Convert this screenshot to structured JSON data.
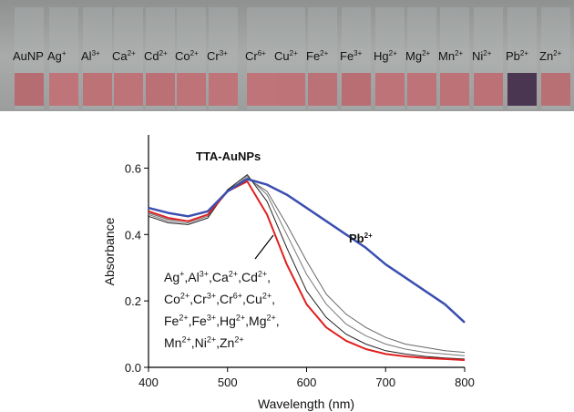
{
  "photo": {
    "labels": [
      [
        "AuNP"
      ],
      [
        "Ag",
        "+"
      ],
      [
        "Al",
        "3+"
      ],
      [
        "Ca",
        "2+"
      ],
      [
        "Cd",
        "2+"
      ],
      [
        "Co",
        "2+"
      ],
      [
        "Cr",
        "3+"
      ],
      [
        "Cr",
        "6+"
      ],
      [
        "Cu",
        "2+"
      ],
      [
        "Fe",
        "2+"
      ],
      [
        "Fe",
        "3+"
      ],
      [
        "Hg",
        "2+"
      ],
      [
        "Mg",
        "2+"
      ],
      [
        "Mn",
        "2+"
      ],
      [
        "Ni",
        "2+"
      ],
      [
        "Pb",
        "2+"
      ],
      [
        "Zn",
        "2+"
      ]
    ],
    "colors": [
      "#b56d72",
      "#bf7479",
      "#bd7276",
      "#be7378",
      "#bb7075",
      "#bd7378",
      "#be7479",
      "#be7479",
      "#bd7378",
      "#bb7277",
      "#b86e73",
      "#bd7378",
      "#bd7378",
      "#bc7277",
      "#bb7176",
      "#4b3652",
      "#b97075"
    ]
  },
  "chart_data": {
    "type": "line",
    "x_label": "Wavelength (nm)",
    "y_label": "Absorbance",
    "x": [
      400,
      425,
      450,
      475,
      500,
      525,
      550,
      575,
      600,
      625,
      650,
      675,
      700,
      725,
      750,
      775,
      800
    ],
    "series": [
      {
        "color": "#666666",
        "values": [
          0.465,
          0.445,
          0.44,
          0.46,
          0.535,
          0.57,
          0.53,
          0.43,
          0.32,
          0.22,
          0.16,
          0.12,
          0.09,
          0.07,
          0.06,
          0.05,
          0.045
        ]
      },
      {
        "color": "#777777",
        "values": [
          0.46,
          0.44,
          0.435,
          0.455,
          0.53,
          0.575,
          0.52,
          0.4,
          0.28,
          0.19,
          0.13,
          0.095,
          0.07,
          0.055,
          0.045,
          0.04,
          0.035
        ]
      },
      {
        "color": "#222222",
        "values": [
          0.455,
          0.435,
          0.43,
          0.45,
          0.535,
          0.58,
          0.5,
          0.36,
          0.23,
          0.15,
          0.1,
          0.07,
          0.05,
          0.04,
          0.033,
          0.028,
          0.025
        ]
      },
      {
        "color": "#e02020",
        "values": [
          0.47,
          0.45,
          0.44,
          0.46,
          0.53,
          0.56,
          0.46,
          0.31,
          0.19,
          0.12,
          0.08,
          0.055,
          0.04,
          0.033,
          0.028,
          0.025,
          0.022
        ]
      },
      {
        "color": "#3b4fb0",
        "values": [
          0.48,
          0.465,
          0.455,
          0.47,
          0.53,
          0.567,
          0.55,
          0.52,
          0.48,
          0.44,
          0.4,
          0.36,
          0.31,
          0.27,
          0.23,
          0.19,
          0.135
        ]
      }
    ],
    "xlim": [
      400,
      800
    ],
    "ylim": [
      0,
      0.7
    ],
    "xticks": [
      400,
      500,
      600,
      700,
      800
    ],
    "yticks": [
      {
        "value": 0,
        "label": "0.0"
      },
      0.2,
      0.4,
      0.6
    ],
    "annotations": {
      "title": "TTA-AuNPs",
      "pb": [
        "Pb",
        "2+"
      ],
      "list": [
        [
          "Ag",
          "+",
          ",Al",
          "3+",
          ",Ca",
          "2+",
          ",Cd",
          "2+",
          ","
        ],
        [
          "Co",
          "2+",
          ",Cr",
          "3+",
          ",Cr",
          "6+",
          ",Cu",
          "2+",
          ","
        ],
        [
          "Fe",
          "2+",
          ",Fe",
          "3+",
          ",Hg",
          "2+",
          ",Mg",
          "2+",
          ","
        ],
        [
          "Mn",
          "2+",
          ",Ni",
          "2+",
          ",Zn",
          "2+"
        ]
      ]
    }
  }
}
